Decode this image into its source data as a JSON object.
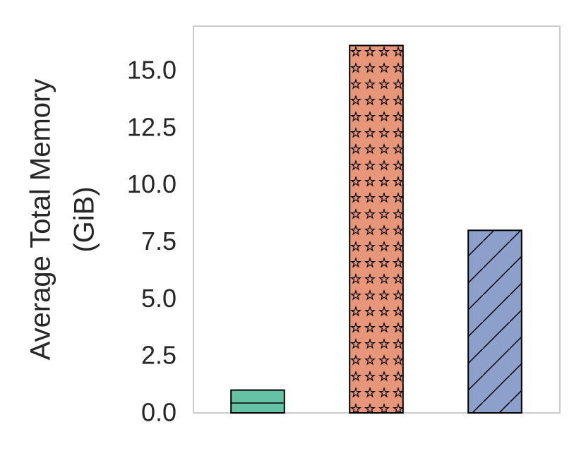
{
  "chart_data": {
    "type": "bar",
    "ylabel": [
      "Average Total Memory",
      "(GiB)"
    ],
    "categories": [
      null,
      null,
      null
    ],
    "values": [
      1.0,
      16.1,
      8.0
    ],
    "colors": [
      "#66c2a5",
      "#e8967a",
      "#8da0cb"
    ],
    "hatches": [
      "-",
      "*",
      "/"
    ],
    "ylim": [
      0,
      16.95
    ],
    "yticks": [
      {
        "value": 0,
        "label": "0.0"
      },
      2.5,
      {
        "value": 5,
        "label": "5.0"
      },
      7.5,
      {
        "value": 10,
        "label": "10.0"
      },
      12.5,
      {
        "value": 15,
        "label": "15.0"
      }
    ],
    "grid": false
  }
}
